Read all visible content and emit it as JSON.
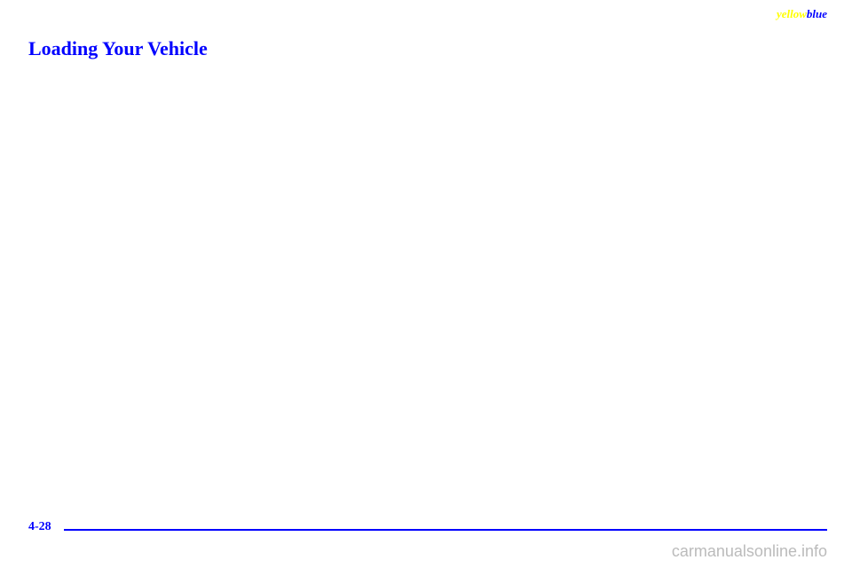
{
  "header": {
    "yellow_text": "yellow",
    "blue_text": "blue"
  },
  "section": {
    "title": "Loading Your Vehicle"
  },
  "footer": {
    "page_number": "4-28",
    "watermark": "carmanualsonline.info"
  },
  "colors": {
    "heading": "#0000ff",
    "divider": "#0000ff",
    "yellow": "#ffff00",
    "watermark": "#bbbbbb",
    "background": "#ffffff"
  }
}
